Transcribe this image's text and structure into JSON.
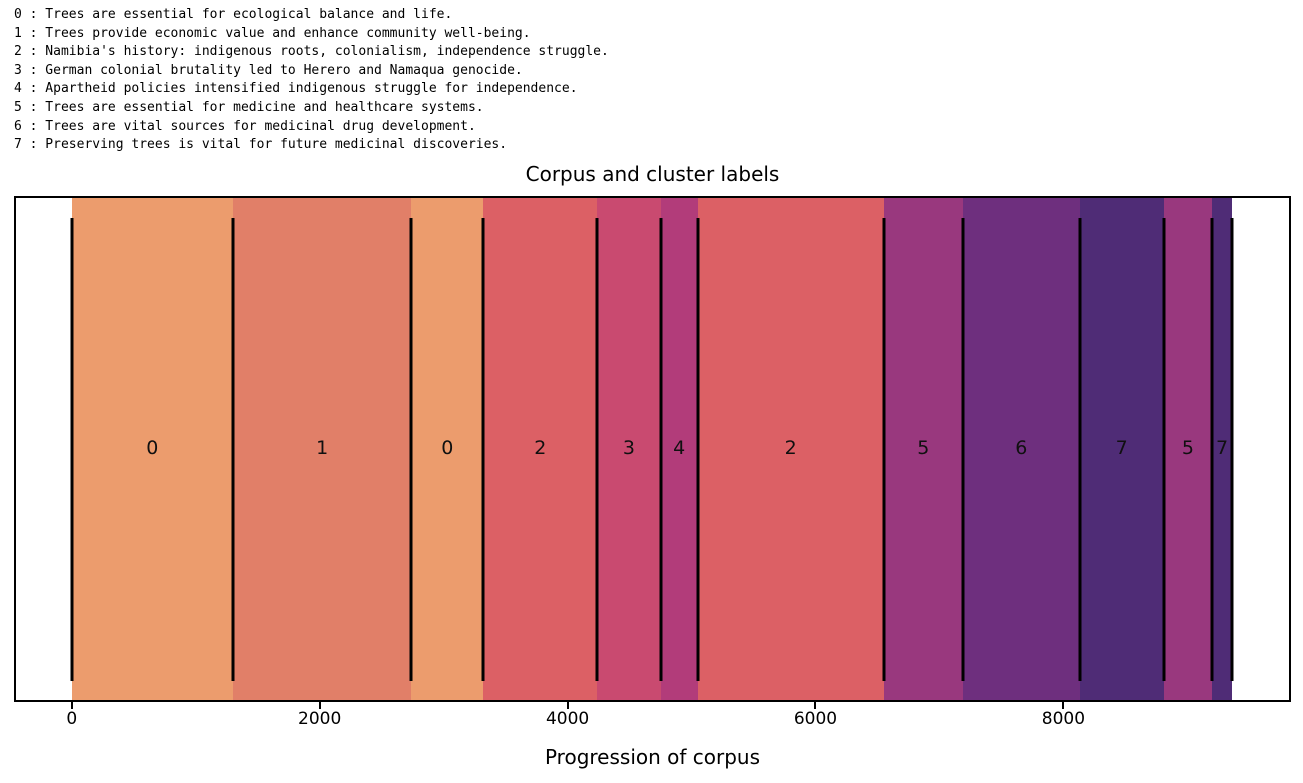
{
  "chart_data": {
    "type": "area",
    "title": "Corpus and cluster labels",
    "xlabel": "Progression of corpus",
    "xlim": [
      -450,
      9820
    ],
    "xticks": [
      0,
      2000,
      4000,
      6000,
      8000
    ],
    "grid": false,
    "legend_position": "above-figure-top-left",
    "segments": [
      {
        "start": 0,
        "end": 1300,
        "cluster": "0"
      },
      {
        "start": 1300,
        "end": 2740,
        "cluster": "1"
      },
      {
        "start": 2740,
        "end": 3320,
        "cluster": "0"
      },
      {
        "start": 3320,
        "end": 4240,
        "cluster": "2"
      },
      {
        "start": 4240,
        "end": 4750,
        "cluster": "3"
      },
      {
        "start": 4750,
        "end": 5050,
        "cluster": "4"
      },
      {
        "start": 5050,
        "end": 6550,
        "cluster": "2"
      },
      {
        "start": 6550,
        "end": 7190,
        "cluster": "5"
      },
      {
        "start": 7190,
        "end": 8130,
        "cluster": "6"
      },
      {
        "start": 8130,
        "end": 8810,
        "cluster": "7"
      },
      {
        "start": 8810,
        "end": 9200,
        "cluster": "5"
      },
      {
        "start": 9200,
        "end": 9360,
        "cluster": "7"
      }
    ],
    "cluster_colors": {
      "0": "#ec9c6d",
      "1": "#e17f68",
      "2": "#dc6065",
      "3": "#c94a70",
      "4": "#b23c7a",
      "5": "#99387e",
      "6": "#6e2f7e",
      "7": "#4f2c76"
    },
    "legend_lines": [
      "0 : Trees are essential for ecological balance and life.",
      "1 : Trees provide economic value and enhance community well-being.",
      "2 : Namibia's history: indigenous roots, colonialism, independence struggle.",
      "3 : German colonial brutality led to Herero and Namaqua genocide.",
      "4 : Apartheid policies intensified indigenous struggle for independence.",
      "5 : Trees are essential for medicine and healthcare systems.",
      "6 : Trees are vital sources for medicinal drug development.",
      "7 : Preserving trees is vital for future medicinal discoveries."
    ]
  }
}
